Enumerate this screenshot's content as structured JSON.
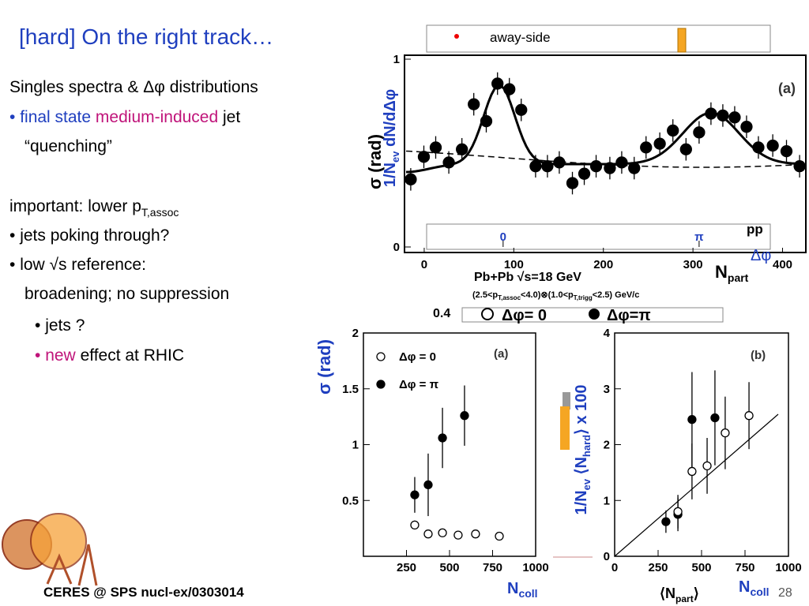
{
  "slide": {
    "title": "[hard] On the right track…",
    "heading": "Singles spectra & Δφ distributions",
    "b1": [
      "final state",
      "medium-induced",
      "jet"
    ],
    "b1b": "“quenching”",
    "b2": "important: lower p",
    "b2_sub": "T,assoc",
    "b3": "jets poking through?",
    "b4a": "low √s reference:",
    "b4b": "broadening; no suppression",
    "b5": "jets ?",
    "b6": [
      "new",
      "effect at RHIC"
    ],
    "footer": "CERES @ SPS nucl-ex/0303014",
    "page": "28"
  },
  "top_plot": {
    "legend_label": "away-side",
    "ylabel": "1/N",
    "ylabel_sub": "ev",
    "ylabel_rest": " dN/dΔφ",
    "ylabel_overlap": "σ (rad)",
    "panel": "(a)",
    "pp": "pp",
    "xlabel": "Δφ",
    "x2label": "N",
    "x2label_sub": "part",
    "caption": "Pb+Pb √s=18 GeV",
    "cuts": "(2.5<p",
    "cuts_sub1": "T,assoc",
    "cuts_mid": "<4.0)⊗(1.0<p",
    "cuts_sub2": "T,trigg",
    "cuts_end": "<2.5) GeV/c",
    "legend_tick": "0.4",
    "legend_open": "Δφ= 0",
    "legend_filled": "Δφ=π",
    "xlim": [
      -1.58,
      4.85
    ],
    "xticks": [
      0,
      {
        "value": 3.14,
        "label": "π"
      }
    ],
    "x2lim": [
      -22,
      426
    ],
    "x2ticks": [
      0,
      100,
      200,
      300,
      400
    ],
    "ylim": [
      0,
      1
    ],
    "yticks": [
      0,
      1
    ],
    "series": [
      {
        "marker": "filled",
        "color": "#000",
        "error": 0.06,
        "x": [
          -1.48,
          -1.27,
          -1.08,
          -0.87,
          -0.66,
          -0.47,
          -0.27,
          -0.09,
          0.1,
          0.29,
          0.52,
          0.71,
          0.9,
          1.11,
          1.3,
          1.49,
          1.71,
          1.9,
          2.1,
          2.29,
          2.51,
          2.72,
          2.93,
          3.14,
          3.33,
          3.52,
          3.71,
          3.9,
          4.09,
          4.32,
          4.54,
          4.75
        ],
        "values": [
          0.36,
          0.48,
          0.53,
          0.45,
          0.52,
          0.76,
          0.67,
          0.87,
          0.84,
          0.73,
          0.43,
          0.43,
          0.45,
          0.34,
          0.39,
          0.43,
          0.42,
          0.45,
          0.42,
          0.53,
          0.55,
          0.62,
          0.52,
          0.61,
          0.71,
          0.7,
          0.69,
          0.64,
          0.53,
          0.54,
          0.51,
          0.43
        ]
      }
    ]
  },
  "left_plot": {
    "ylabel": "σ (rad)",
    "panel": "(a)",
    "xlabel": "N",
    "xlabel_sub": "coll",
    "xlim": [
      0,
      1000
    ],
    "xticks": [
      250,
      500,
      750,
      1000
    ],
    "ylim": [
      0,
      2
    ],
    "yticks": [
      0.5,
      1,
      1.5,
      2
    ],
    "series": [
      {
        "name": "Δφ = 0",
        "marker": "open",
        "color": "#000",
        "x": [
          298,
          376,
          459,
          550,
          651,
          789
        ],
        "values": [
          0.28,
          0.2,
          0.21,
          0.19,
          0.2,
          0.18
        ],
        "errors": [
          0.04,
          0.03,
          0.03,
          0.02,
          0.02,
          0.02
        ]
      },
      {
        "name": "Δφ = π",
        "marker": "filled",
        "color": "#000",
        "x": [
          298,
          376,
          459,
          587
        ],
        "values": [
          0.55,
          0.64,
          1.06,
          1.26
        ],
        "errors": [
          0.16,
          0.28,
          0.27,
          0.27
        ]
      }
    ]
  },
  "right_plot": {
    "ylabel": "1/N",
    "ylabel_sub": "ev",
    "ylabel_mid": " ⟨N",
    "ylabel_sub2": "hard",
    "ylabel_end": "⟩ x 100",
    "panel": "(b)",
    "xlabel": "⟨N",
    "xlabel_sub": "part",
    "xlabel_end": "⟩",
    "x2label": "N",
    "x2label_sub": "coll",
    "xlim": [
      0,
      1000
    ],
    "xticks": [
      0,
      250,
      500,
      750,
      1000
    ],
    "ylim": [
      0,
      4
    ],
    "yticks": [
      0,
      1,
      2,
      3,
      4
    ],
    "series": [
      {
        "marker": "filled",
        "color": "#000",
        "x": [
          295,
          364,
          445,
          577
        ],
        "values": [
          0.62,
          0.75,
          2.45,
          2.48
        ],
        "errors": [
          0.2,
          0.3,
          0.85,
          0.85
        ]
      },
      {
        "marker": "open",
        "color": "#000",
        "x": [
          364,
          445,
          532,
          636,
          773
        ],
        "values": [
          0.8,
          1.52,
          1.62,
          2.21,
          2.52
        ],
        "errors": [
          0.3,
          0.5,
          0.5,
          0.65,
          0.6
        ]
      }
    ]
  }
}
